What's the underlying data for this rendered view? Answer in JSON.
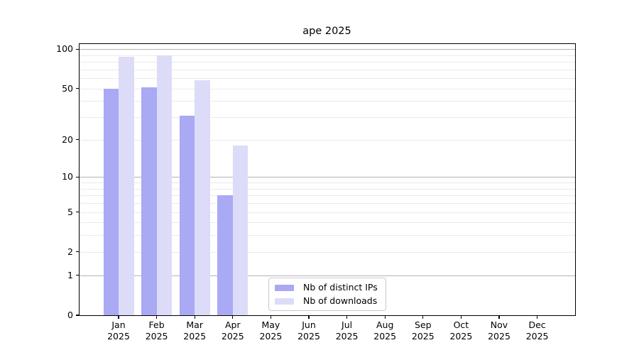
{
  "title": "ape 2025",
  "colors": {
    "distinct_ips": "#a9a9f4",
    "downloads": "#dcdcf9",
    "grid_minor": "#eaeaea",
    "grid_major": "#b3b3b3",
    "axis": "#000000",
    "background": "#ffffff",
    "legend_border": "#c9c9c9"
  },
  "y_axis": {
    "ticks": [
      {
        "value": 100,
        "label": "100"
      },
      {
        "value": 50,
        "label": "50"
      },
      {
        "value": 20,
        "label": "20"
      },
      {
        "value": 10,
        "label": "10"
      },
      {
        "value": 5,
        "label": "5"
      },
      {
        "value": 2,
        "label": "2"
      },
      {
        "value": 1,
        "label": "1"
      },
      {
        "value": 0,
        "label": "0"
      }
    ]
  },
  "x_axis": {
    "ticks": [
      {
        "month": "Jan",
        "year": "2025"
      },
      {
        "month": "Feb",
        "year": "2025"
      },
      {
        "month": "Mar",
        "year": "2025"
      },
      {
        "month": "Apr",
        "year": "2025"
      },
      {
        "month": "May",
        "year": "2025"
      },
      {
        "month": "Jun",
        "year": "2025"
      },
      {
        "month": "Jul",
        "year": "2025"
      },
      {
        "month": "Aug",
        "year": "2025"
      },
      {
        "month": "Sep",
        "year": "2025"
      },
      {
        "month": "Oct",
        "year": "2025"
      },
      {
        "month": "Nov",
        "year": "2025"
      },
      {
        "month": "Dec",
        "year": "2025"
      }
    ]
  },
  "legend": {
    "items": [
      {
        "label": "Nb of distinct IPs",
        "color_key": "distinct_ips"
      },
      {
        "label": "Nb of downloads",
        "color_key": "downloads"
      }
    ]
  },
  "chart_data": {
    "type": "bar",
    "title": "ape 2025",
    "categories": [
      "Jan 2025",
      "Feb 2025",
      "Mar 2025",
      "Apr 2025",
      "May 2025",
      "Jun 2025",
      "Jul 2025",
      "Aug 2025",
      "Sep 2025",
      "Oct 2025",
      "Nov 2025",
      "Dec 2025"
    ],
    "series": [
      {
        "name": "Nb of distinct IPs",
        "color": "#a9a9f4",
        "values": [
          50,
          51,
          31,
          7,
          null,
          null,
          null,
          null,
          null,
          null,
          null,
          null
        ]
      },
      {
        "name": "Nb of downloads",
        "color": "#dcdcf9",
        "values": [
          87,
          90,
          58,
          18,
          null,
          null,
          null,
          null,
          null,
          null,
          null,
          null
        ]
      }
    ],
    "xlabel": "",
    "ylabel": "",
    "y_ticks": [
      0,
      1,
      2,
      5,
      10,
      20,
      50,
      100
    ],
    "y_scale": "log10(1+v)",
    "ylim": [
      0,
      110
    ],
    "grid": "horizontal, minor lines per log decade",
    "legend_position": "inside lower-center"
  }
}
